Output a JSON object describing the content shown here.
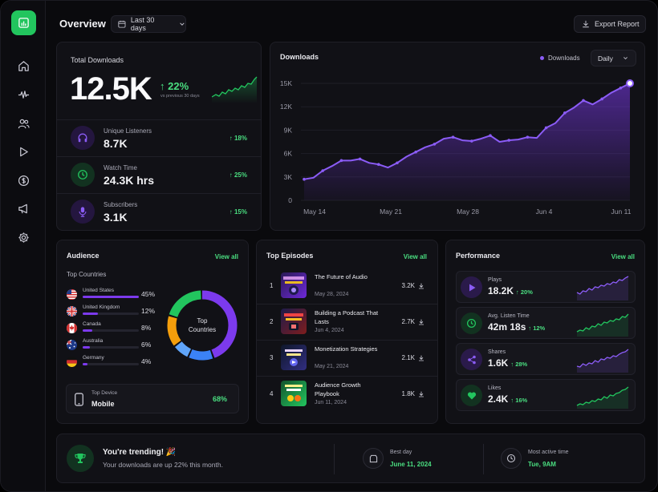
{
  "header": {
    "title": "Overview",
    "date_range": "Last 30 days",
    "export_label": "Export Report"
  },
  "sidebar": {
    "items": [
      {
        "icon": "home-icon"
      },
      {
        "icon": "waveform-icon"
      },
      {
        "icon": "users-icon"
      },
      {
        "icon": "play-icon"
      },
      {
        "icon": "dollar-icon"
      },
      {
        "icon": "megaphone-icon"
      },
      {
        "icon": "gear-icon"
      }
    ]
  },
  "total": {
    "label": "Total Downloads",
    "value": "12.5K",
    "delta": "22%",
    "delta_caption": "vs previous 30 days"
  },
  "stats": [
    {
      "label": "Unique Listeners",
      "value": "8.7K",
      "delta": "18%",
      "icon": "headphones-icon",
      "color": "#7c3aed"
    },
    {
      "label": "Watch Time",
      "value": "24.3K hrs",
      "delta": "25%",
      "icon": "clock-icon",
      "color": "#22c55e"
    },
    {
      "label": "Subscribers",
      "value": "3.1K",
      "delta": "15%",
      "icon": "mic-icon",
      "color": "#7c3aed"
    }
  ],
  "downloads_chart": {
    "title": "Downloads",
    "legend": "Downloads",
    "period": "Daily"
  },
  "chart_data": {
    "type": "area",
    "title": "Downloads",
    "series": [
      {
        "name": "Downloads",
        "values": [
          2700,
          2900,
          3800,
          4400,
          5100,
          5100,
          5300,
          4800,
          4600,
          4200,
          4800,
          5600,
          6200,
          6800,
          7200,
          7900,
          8100,
          7700,
          7600,
          7900,
          8300,
          7500,
          7700,
          7800,
          8100,
          8000,
          9300,
          9900,
          11200,
          11900,
          12800,
          12300,
          13000,
          13800,
          14400,
          15000
        ]
      }
    ],
    "x_tick_labels": [
      "May 14",
      "May 21",
      "May 28",
      "Jun 4",
      "Jun 11"
    ],
    "y_tick_labels": [
      "0",
      "3K",
      "6K",
      "9K",
      "12K",
      "15K"
    ],
    "ylim": [
      0,
      15000
    ],
    "grid": true,
    "legend_position": "top-right"
  },
  "audience": {
    "title": "Audience",
    "view_all": "View all",
    "subtitle": "Top Countries",
    "countries": [
      {
        "name": "United States",
        "pct": "45%",
        "share": 0.45,
        "flag": "us-flag-icon"
      },
      {
        "name": "United Kingdom",
        "pct": "12%",
        "share": 0.12,
        "flag": "uk-flag-icon"
      },
      {
        "name": "Canada",
        "pct": "8%",
        "share": 0.08,
        "flag": "canada-flag-icon"
      },
      {
        "name": "Australia",
        "pct": "6%",
        "share": 0.06,
        "flag": "australia-flag-icon"
      },
      {
        "name": "Germany",
        "pct": "4%",
        "share": 0.04,
        "flag": "germany-flag-icon"
      }
    ],
    "donut_label_1": "Top",
    "donut_label_2": "Countries",
    "donut_segments": [
      {
        "value": 45,
        "color": "#7c3aed"
      },
      {
        "value": 12,
        "color": "#3b82f6"
      },
      {
        "value": 8,
        "color": "#60a5fa"
      },
      {
        "value": 15,
        "color": "#f59e0b"
      },
      {
        "value": 20,
        "color": "#22c55e"
      }
    ],
    "device_label": "Top Device",
    "device_value": "Mobile",
    "device_pct": "68%"
  },
  "episodes": {
    "title": "Top Episodes",
    "view_all": "View all",
    "items": [
      {
        "rank": "1",
        "title": "The Future of Audio",
        "date": "May 28, 2024",
        "count": "3.2K",
        "thumb_color": "#3b1f6b"
      },
      {
        "rank": "2",
        "title": "Building a Podcast That Lasts",
        "date": "Jun 4, 2024",
        "count": "2.7K",
        "thumb_color": "#5b1d1d"
      },
      {
        "rank": "3",
        "title": "Monetization Strategies",
        "date": "May 21, 2024",
        "count": "2.1K",
        "thumb_color": "#1f2a5b"
      },
      {
        "rank": "4",
        "title": "Audience Growth Playbook",
        "date": "Jun 11, 2024",
        "count": "1.8K",
        "thumb_color": "#1f5b2a"
      }
    ]
  },
  "performance": {
    "title": "Performance",
    "view_all": "View all",
    "items": [
      {
        "label": "Plays",
        "value": "18.2K",
        "delta": "20%",
        "icon": "play-icon",
        "color": "#7c3aed",
        "spark_color": "#8b5cf6"
      },
      {
        "label": "Avg. Listen Time",
        "value": "42m 18s",
        "delta": "12%",
        "icon": "clock-icon",
        "color": "#22c55e",
        "spark_color": "#22c55e"
      },
      {
        "label": "Shares",
        "value": "1.6K",
        "delta": "28%",
        "icon": "share-icon",
        "color": "#7c3aed",
        "spark_color": "#8b5cf6"
      },
      {
        "label": "Likes",
        "value": "2.4K",
        "delta": "16%",
        "icon": "heart-icon",
        "color": "#22c55e",
        "spark_color": "#22c55e"
      }
    ]
  },
  "footer": {
    "trending_title": "You're trending! 🎉",
    "trending_text": "Your downloads are up 22% this month.",
    "best_day_label": "Best day",
    "best_day_value": "June 11, 2024",
    "active_label": "Most active time",
    "active_value": "Tue, 9AM"
  }
}
